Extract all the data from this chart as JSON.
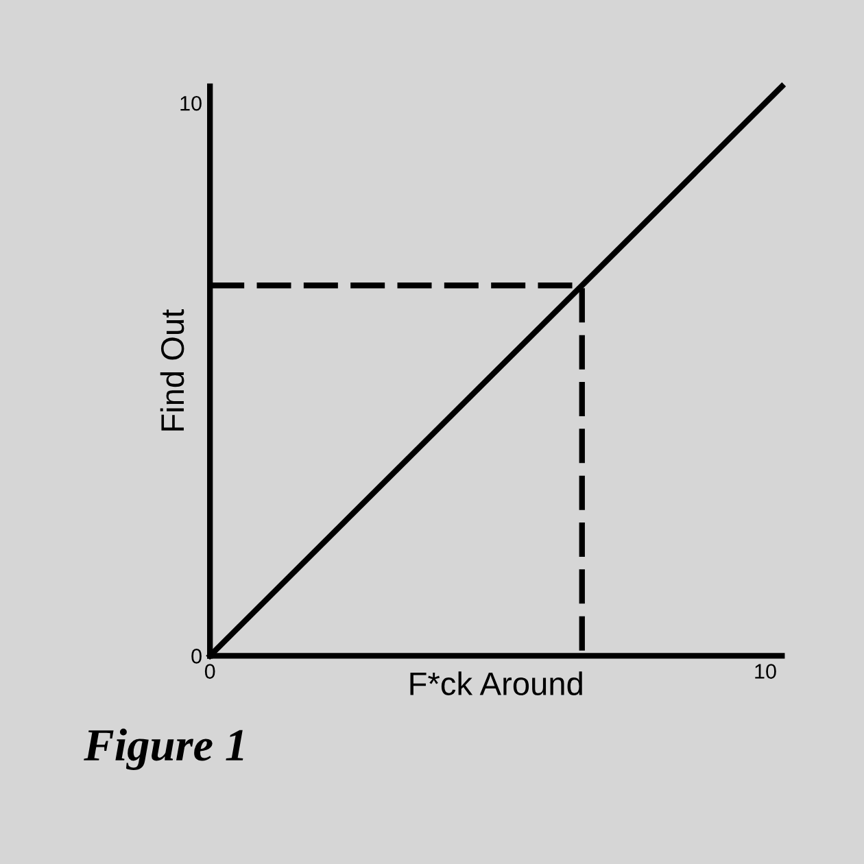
{
  "chart_data": {
    "type": "line",
    "xlabel": "F*ck Around",
    "ylabel": "Find Out",
    "annotations": [
      "Figure 1"
    ],
    "xlim": [
      0,
      10.3
    ],
    "ylim": [
      0,
      10.3
    ],
    "xticks": [
      0,
      10
    ],
    "yticks": [
      0,
      10
    ],
    "grid": false,
    "legend": false,
    "marker": "none",
    "series": [
      {
        "color": "#000000",
        "x": [
          0,
          10.3
        ],
        "values": [
          0,
          10.3
        ],
        "line_style": "solid"
      },
      {
        "color": "#000000",
        "x": [
          0,
          6.7,
          6.7
        ],
        "values": [
          6.7,
          6.7,
          0
        ],
        "line_style": "dashed"
      }
    ]
  }
}
